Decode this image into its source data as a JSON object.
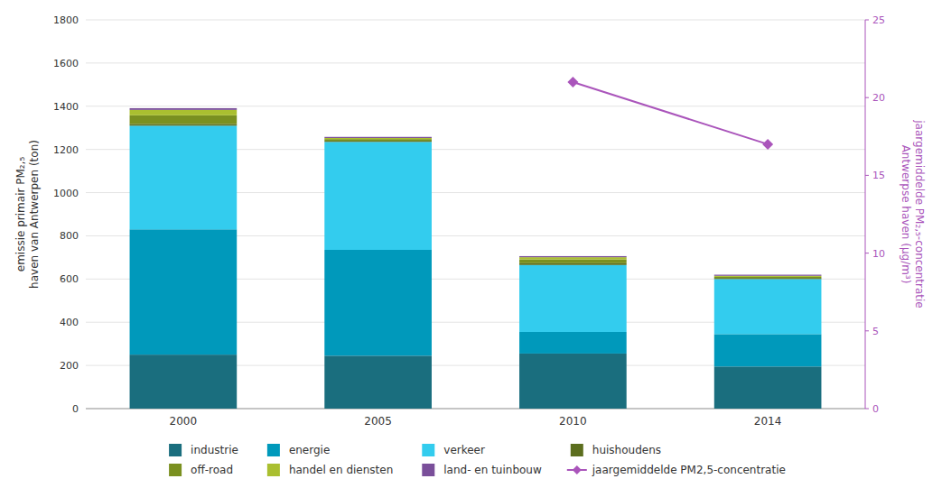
{
  "chart_data": {
    "type": "bar",
    "stacked": true,
    "categories": [
      "2000",
      "2005",
      "2010",
      "2014"
    ],
    "series": [
      {
        "name": "industrie",
        "color": "#1a6e7e",
        "values": [
          250,
          245,
          255,
          195
        ]
      },
      {
        "name": "energie",
        "color": "#0099bb",
        "values": [
          580,
          490,
          100,
          150
        ]
      },
      {
        "name": "verkeer",
        "color": "#33ccee",
        "values": [
          480,
          500,
          310,
          255
        ]
      },
      {
        "name": "huishoudens",
        "color": "#5c6e1e",
        "values": [
          8,
          5,
          8,
          5
        ]
      },
      {
        "name": "off-road",
        "color": "#7a9020",
        "values": [
          40,
          8,
          18,
          5
        ]
      },
      {
        "name": "handel en diensten",
        "color": "#aabf30",
        "values": [
          25,
          5,
          10,
          5
        ]
      },
      {
        "name": "land- en tuinbouw",
        "color": "#7a4f9a",
        "values": [
          8,
          5,
          5,
          5
        ]
      },
      {
        "name": "jaargemiddelde PM2,5-concentratie",
        "type": "line",
        "axis": "y2",
        "color": "#aa55bb",
        "marker": "diamond",
        "values": [
          null,
          null,
          21.0,
          17.0
        ]
      }
    ],
    "y_label": "emissie primair PM₂,₅\nhaven van Antwerpen (ton)",
    "y2_label": "jaargemiddelde PM₂,₅-concentratie\nAntwerpse haven (μg/m³)",
    "ylim": [
      0,
      1800
    ],
    "yticks": [
      0,
      200,
      400,
      600,
      800,
      1000,
      1200,
      1400,
      1600,
      1800
    ],
    "y2lim": [
      0,
      25
    ],
    "y2ticks": [
      0,
      5,
      10,
      15,
      20,
      25
    ],
    "grid": true,
    "legend": "bottom"
  }
}
